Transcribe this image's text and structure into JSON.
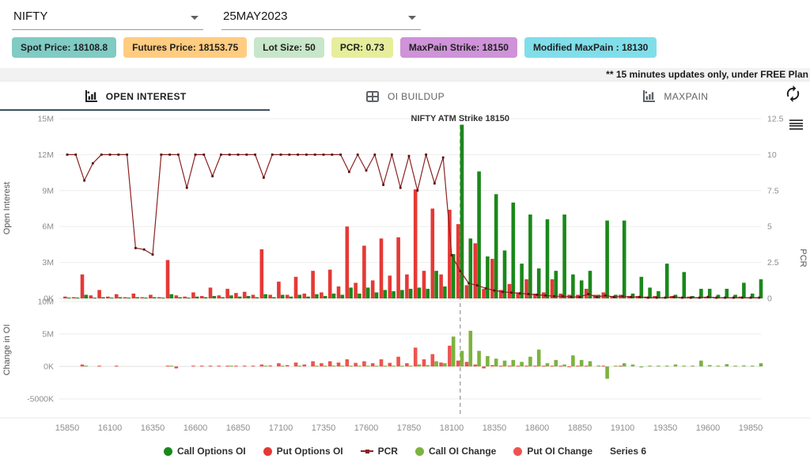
{
  "topbar": {
    "symbol": "NIFTY",
    "expiry": "25MAY2023"
  },
  "badges": [
    {
      "label": "Spot Price: 18108.8",
      "bg": "#80cbc4"
    },
    {
      "label": "Futures Price: 18153.75",
      "bg": "#ffcc80"
    },
    {
      "label": "Lot Size: 50",
      "bg": "#c8e6c9"
    },
    {
      "label": "PCR: 0.73",
      "bg": "#e6ee9c"
    },
    {
      "label": "MaxPain Strike: 18150",
      "bg": "#ce93d8"
    },
    {
      "label": "Modified MaxPain : 18130",
      "bg": "#80deea"
    }
  ],
  "notice": "** 15 minutes updates only, under FREE Plan",
  "tabs": [
    {
      "label": "OPEN INTEREST",
      "active": true
    },
    {
      "label": "OI BUILDUP",
      "active": false
    },
    {
      "label": "MAXPAIN",
      "active": false
    }
  ],
  "chart_data": {
    "type": "bar+line",
    "unit": "millions",
    "annotation": "NIFTY ATM Strike 18150",
    "atm_strike": 18150,
    "x_tick_labels": [
      "15850",
      "16100",
      "16350",
      "16600",
      "16850",
      "17100",
      "17350",
      "17600",
      "17850",
      "18100",
      "18350",
      "18600",
      "18850",
      "19100",
      "19350",
      "19600",
      "19850"
    ],
    "axes": {
      "oi": {
        "label": "Open Interest",
        "tick_labels": [
          "0K",
          "3M",
          "6M",
          "9M",
          "12M",
          "15M"
        ],
        "tick_values": [
          0,
          3,
          6,
          9,
          12,
          15
        ],
        "range": [
          0,
          15
        ]
      },
      "pcr": {
        "label": "PCR",
        "tick_labels": [
          "0",
          "2.5",
          "5",
          "7.5",
          "10",
          "12.5"
        ],
        "tick_values": [
          0,
          2.5,
          5,
          7.5,
          10,
          12.5
        ],
        "range": [
          0,
          12.5
        ]
      },
      "chg": {
        "label": "Change in OI",
        "tick_labels": [
          "-5000K",
          "0K",
          "5M",
          "10M"
        ],
        "tick_values": [
          -5,
          0,
          5,
          10
        ],
        "range": [
          -8.5,
          10
        ]
      }
    },
    "strikes": [
      15850,
      15900,
      15950,
      16000,
      16050,
      16100,
      16150,
      16200,
      16250,
      16300,
      16350,
      16400,
      16450,
      16500,
      16550,
      16600,
      16650,
      16700,
      16750,
      16800,
      16850,
      16900,
      16950,
      17000,
      17050,
      17100,
      17150,
      17200,
      17250,
      17300,
      17350,
      17400,
      17450,
      17500,
      17550,
      17600,
      17650,
      17700,
      17750,
      17800,
      17850,
      17900,
      17950,
      18000,
      18050,
      18100,
      18150,
      18200,
      18250,
      18300,
      18350,
      18400,
      18450,
      18500,
      18550,
      18600,
      18650,
      18700,
      18750,
      18800,
      18850,
      18900,
      18950,
      19000,
      19050,
      19100,
      19150,
      19200,
      19250,
      19300,
      19350,
      19400,
      19450,
      19500,
      19550,
      19600,
      19650,
      19700,
      19750,
      19800,
      19850,
      19900
    ],
    "series": [
      {
        "name": "Call Options OI",
        "type": "bar",
        "marker": "dot",
        "axis": "oi",
        "color": "#1a881a",
        "values": [
          0.05,
          0.05,
          0.3,
          0.05,
          0.1,
          0.05,
          0.1,
          0.05,
          0.1,
          0.05,
          0.1,
          0.05,
          0.35,
          0.1,
          0.05,
          0.15,
          0.1,
          0.2,
          0.1,
          0.25,
          0.15,
          0.2,
          0.1,
          0.35,
          0.1,
          0.3,
          0.15,
          0.3,
          0.15,
          0.35,
          0.2,
          0.4,
          0.3,
          0.9,
          0.4,
          0.9,
          0.5,
          0.7,
          0.6,
          0.7,
          0.8,
          0.9,
          0.8,
          2.3,
          1.0,
          3.7,
          14.5,
          5.0,
          10.6,
          3.5,
          8.7,
          4.0,
          8.0,
          2.9,
          7.0,
          2.5,
          6.6,
          2.3,
          7.0,
          2.0,
          1.5,
          2.3,
          0.3,
          6.5,
          0.3,
          6.5,
          0.4,
          1.8,
          0.9,
          0.6,
          2.9,
          0.3,
          2.2,
          0.2,
          0.8,
          0.8,
          0.3,
          0.8,
          0.3,
          1.3,
          0.4,
          1.6
        ]
      },
      {
        "name": "Put Options OI",
        "type": "bar",
        "marker": "dot",
        "axis": "oi",
        "color": "#e53935",
        "values": [
          0.15,
          0.1,
          2.0,
          0.25,
          0.7,
          0.15,
          0.35,
          0.1,
          0.4,
          0.1,
          0.3,
          0.1,
          3.2,
          0.25,
          0.15,
          0.5,
          0.2,
          0.9,
          0.25,
          0.8,
          0.45,
          0.55,
          0.3,
          4.1,
          0.3,
          1.4,
          0.3,
          1.8,
          0.4,
          2.3,
          0.5,
          2.4,
          1.0,
          6.0,
          1.3,
          4.4,
          1.5,
          5.0,
          1.9,
          5.1,
          2.0,
          9.1,
          2.3,
          7.5,
          2.0,
          7.4,
          6.2,
          1.1,
          4.6,
          0.8,
          3.3,
          0.7,
          1.2,
          0.5,
          1.6,
          0.4,
          0.5,
          1.6,
          0.4,
          0.3,
          0.3,
          0.8,
          0.3,
          0.5,
          0.2,
          0.3,
          0.2,
          0.2,
          0.15,
          0.2,
          0.1,
          0.2,
          0.1,
          0.15,
          0.1,
          0.1,
          0.1,
          0.1,
          0.1,
          0.15,
          0.1,
          0.1
        ]
      },
      {
        "name": "PCR",
        "type": "line",
        "marker": "line",
        "axis": "pcr",
        "color": "#8b2222",
        "values": [
          10,
          10,
          8.2,
          9.4,
          10,
          10,
          10,
          10,
          3.5,
          3.4,
          3.05,
          10,
          10,
          10,
          7.7,
          10,
          10,
          8.5,
          10,
          10,
          10,
          10,
          10,
          8.4,
          10,
          10,
          10,
          10,
          10,
          10,
          10,
          10,
          10,
          8.8,
          10,
          8.9,
          10,
          7.9,
          10,
          7.7,
          9.9,
          7.5,
          10,
          8.0,
          9.8,
          3.0,
          1.9,
          1.05,
          0.9,
          0.7,
          0.55,
          0.45,
          0.4,
          0.35,
          0.3,
          0.25,
          0.2,
          0.15,
          0.15,
          0.1,
          0.1,
          0.3,
          0.1,
          0.2,
          0.1,
          0.15,
          0.1,
          0.1,
          0.05,
          0.05,
          0.05,
          0.1,
          0.05,
          0.05,
          0.05,
          0.1,
          0.05,
          0.05,
          0.05,
          0.05,
          0.05,
          0.05
        ]
      },
      {
        "name": "Call OI Change",
        "type": "bar",
        "marker": "dot",
        "axis": "chg",
        "color": "#7cb33e",
        "values": [
          0,
          0,
          0.05,
          0,
          0,
          0,
          0,
          0,
          0,
          0,
          0,
          0,
          0.05,
          0,
          0,
          0,
          0,
          0,
          0,
          0.05,
          0,
          0,
          0,
          0.05,
          0,
          0.05,
          0,
          0.05,
          0,
          0.05,
          0.05,
          0.05,
          0.05,
          0.1,
          0.05,
          0.1,
          0.05,
          0.1,
          0.05,
          0.1,
          0.1,
          0.3,
          0.2,
          0.8,
          0.5,
          4.6,
          2.4,
          5.5,
          2.4,
          1.6,
          1.2,
          0.9,
          1.0,
          0.7,
          1.5,
          2.6,
          0.5,
          1.0,
          0.3,
          1.7,
          1.0,
          0.8,
          0.15,
          -1.9,
          0.1,
          0.5,
          0.3,
          -0.15,
          0.05,
          0.05,
          0.1,
          0.3,
          0.1,
          0.1,
          0.9,
          0.2,
          0.1,
          0.35,
          0.1,
          0.15,
          0.1,
          0.5
        ]
      },
      {
        "name": "Put OI Change",
        "type": "bar",
        "marker": "dot",
        "axis": "chg",
        "color": "#ef5350",
        "values": [
          0,
          0,
          0.3,
          0,
          0.05,
          0,
          0.05,
          0,
          0,
          0,
          0,
          0,
          0.05,
          -0.3,
          0,
          0.05,
          0.05,
          0.05,
          0.05,
          0.05,
          0.05,
          0.1,
          0.05,
          0.3,
          0.15,
          0.5,
          0.2,
          0.6,
          0.3,
          0.8,
          0.5,
          0.8,
          0.6,
          1.1,
          0.55,
          0.8,
          0.5,
          1.1,
          0.55,
          1.5,
          0.5,
          2.9,
          1.1,
          1.9,
          0.6,
          3.2,
          0.9,
          0.7,
          0.3,
          -0.3,
          0.2,
          0.1,
          0.1,
          0.05,
          0.1,
          0.05,
          0.05,
          0.1,
          0.05,
          -0.1,
          0.05,
          0.05,
          0,
          0.05,
          0,
          0.05,
          0,
          0,
          0,
          0,
          0,
          0,
          0,
          0,
          0,
          0,
          0,
          0,
          0,
          0,
          0,
          0
        ]
      },
      {
        "name": "Series 6",
        "type": "none",
        "marker": "none",
        "axis": "oi",
        "color": "",
        "values": []
      }
    ]
  }
}
